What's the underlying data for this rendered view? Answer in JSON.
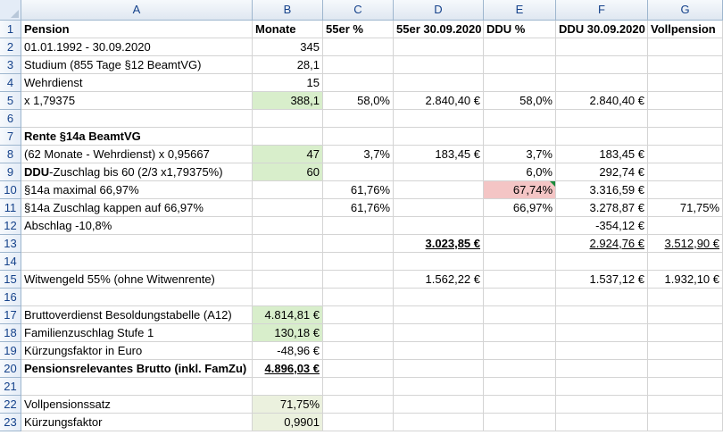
{
  "columns": [
    "A",
    "B",
    "C",
    "D",
    "E",
    "F",
    "G"
  ],
  "rows": [
    {
      "n": "1",
      "cells": {
        "A": "Pension",
        "B": "Monate",
        "C": "55er %",
        "D": "55er 30.09.2020",
        "E": "DDU %",
        "F": "DDU 30.09.2020",
        "G": "Vollpension"
      }
    },
    {
      "n": "2",
      "cells": {
        "A": "01.01.1992 - 30.09.2020",
        "B": "345"
      }
    },
    {
      "n": "3",
      "cells": {
        "A": "Studium (855 Tage §12 BeamtVG)",
        "B": "28,1"
      }
    },
    {
      "n": "4",
      "cells": {
        "A": "Wehrdienst",
        "B": "15"
      }
    },
    {
      "n": "5",
      "cells": {
        "A": "x 1,79375",
        "B": "388,1",
        "C": "58,0%",
        "D": "2.840,40 €",
        "E": "58,0%",
        "F": "2.840,40 €"
      }
    },
    {
      "n": "6",
      "cells": {}
    },
    {
      "n": "7",
      "cells": {
        "A": "Rente §14a BeamtVG"
      }
    },
    {
      "n": "8",
      "cells": {
        "A": "(62 Monate - Wehrdienst) x 0,95667",
        "B": "47",
        "C": "3,7%",
        "D": "183,45 €",
        "E": "3,7%",
        "F": "183,45 €"
      }
    },
    {
      "n": "9",
      "cells": {
        "A_bold": "DDU",
        "A_rest": "-Zuschlag bis 60 (2/3 x1,79375%)",
        "B": "60",
        "E": "6,0%",
        "F": "292,74 €"
      }
    },
    {
      "n": "10",
      "cells": {
        "A": "§14a maximal 66,97%",
        "C": "61,76%",
        "E": "67,74%",
        "F": "3.316,59 €"
      }
    },
    {
      "n": "11",
      "cells": {
        "A": "§14a Zuschlag kappen auf 66,97%",
        "C": "61,76%",
        "E": "66,97%",
        "F": "3.278,87 €",
        "G": "71,75%"
      }
    },
    {
      "n": "12",
      "cells": {
        "A": "Abschlag -10,8%",
        "F": "-354,12 €"
      }
    },
    {
      "n": "13",
      "cells": {
        "D": "3.023,85 €",
        "F": "2.924,76 €",
        "G": "3.512,90 €"
      }
    },
    {
      "n": "14",
      "cells": {}
    },
    {
      "n": "15",
      "cells": {
        "A": "Witwengeld 55% (ohne  Witwenrente)",
        "D": "1.562,22 €",
        "F": "1.537,12 €",
        "G": "1.932,10 €"
      }
    },
    {
      "n": "16",
      "cells": {}
    },
    {
      "n": "17",
      "cells": {
        "A": "Bruttoverdienst Besoldungstabelle (A12)",
        "B": "4.814,81 €"
      }
    },
    {
      "n": "18",
      "cells": {
        "A": "Familienzuschlag Stufe 1",
        "B": "130,18 €"
      }
    },
    {
      "n": "19",
      "cells": {
        "A": "Kürzungsfaktor in Euro",
        "B": "-48,96 €"
      }
    },
    {
      "n": "20",
      "cells": {
        "A": "Pensionsrelevantes Brutto (inkl. FamZu)",
        "B": "4.896,03 €"
      }
    },
    {
      "n": "21",
      "cells": {}
    },
    {
      "n": "22",
      "cells": {
        "A": "Vollpensionssatz",
        "B": "71,75%"
      }
    },
    {
      "n": "23",
      "cells": {
        "A": "Kürzungsfaktor",
        "B": "0,9901"
      }
    }
  ]
}
